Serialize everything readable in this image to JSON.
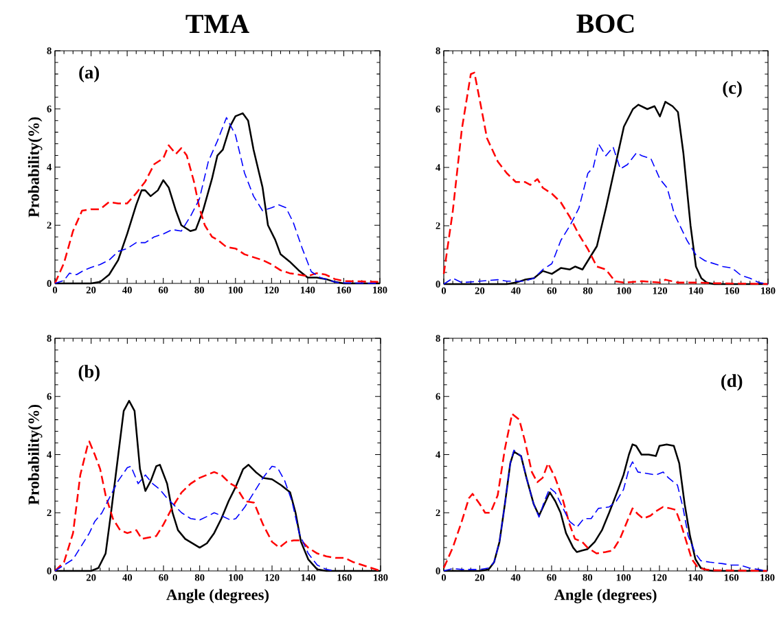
{
  "chart_data": [
    {
      "type": "line",
      "title": "TMA",
      "ylabel": "Probability(%)",
      "annotations": [
        "(a)"
      ],
      "xlim": [
        0,
        180
      ],
      "ylim": [
        0,
        8
      ],
      "xticks": [
        0,
        20,
        40,
        60,
        80,
        100,
        120,
        140,
        160,
        180
      ],
      "yticks": [
        0,
        2,
        4,
        6,
        8
      ],
      "series": [
        {
          "color": "#000000",
          "line_style": "solid",
          "x": [
            0,
            20,
            25,
            30,
            35,
            40,
            45,
            48,
            50,
            53,
            57,
            60,
            63,
            67,
            70,
            75,
            78,
            82,
            87,
            90,
            93,
            97,
            100,
            104,
            107,
            110,
            115,
            118,
            122,
            125,
            130,
            135,
            140,
            145,
            150,
            155,
            160,
            180
          ],
          "values": [
            0,
            0,
            0.05,
            0.3,
            0.8,
            1.7,
            2.7,
            3.2,
            3.2,
            3.0,
            3.2,
            3.55,
            3.3,
            2.5,
            2.0,
            1.8,
            1.85,
            2.5,
            3.6,
            4.4,
            4.6,
            5.4,
            5.75,
            5.85,
            5.6,
            4.6,
            3.3,
            2.0,
            1.5,
            1.0,
            0.75,
            0.45,
            0.2,
            0.2,
            0.15,
            0.05,
            0,
            0
          ]
        },
        {
          "color": "#ff0000",
          "line_style": "dashed",
          "x": [
            0,
            5,
            10,
            15,
            20,
            25,
            30,
            35,
            40,
            45,
            50,
            55,
            60,
            63,
            67,
            70,
            73,
            77,
            80,
            83,
            87,
            90,
            95,
            100,
            105,
            110,
            115,
            120,
            125,
            130,
            135,
            140,
            145,
            150,
            155,
            160,
            180
          ],
          "values": [
            0,
            0.7,
            1.8,
            2.5,
            2.55,
            2.55,
            2.8,
            2.75,
            2.75,
            3.1,
            3.5,
            4.1,
            4.3,
            4.75,
            4.45,
            4.65,
            4.4,
            3.5,
            2.6,
            2.0,
            1.6,
            1.5,
            1.25,
            1.2,
            1.0,
            0.9,
            0.8,
            0.65,
            0.45,
            0.35,
            0.3,
            0.25,
            0.35,
            0.3,
            0.15,
            0.08,
            0.05
          ]
        },
        {
          "color": "#0000ff",
          "line_style": "dashed",
          "x": [
            0,
            5,
            8,
            12,
            16,
            20,
            25,
            30,
            35,
            40,
            45,
            50,
            55,
            60,
            65,
            70,
            75,
            80,
            85,
            90,
            95,
            100,
            105,
            110,
            115,
            120,
            124,
            128,
            132,
            137,
            142,
            147,
            152,
            157,
            180
          ],
          "values": [
            0,
            0.1,
            0.35,
            0.3,
            0.45,
            0.55,
            0.65,
            0.8,
            1.1,
            1.2,
            1.4,
            1.4,
            1.6,
            1.7,
            1.85,
            1.8,
            2.3,
            2.9,
            4.2,
            4.9,
            5.7,
            5.1,
            3.8,
            3.0,
            2.5,
            2.6,
            2.7,
            2.6,
            2.1,
            1.2,
            0.4,
            0.2,
            0.1,
            0.02,
            0
          ]
        }
      ]
    },
    {
      "type": "line",
      "title": "BOC",
      "annotations": [
        "(c)"
      ],
      "xlim": [
        0,
        180
      ],
      "ylim": [
        0,
        8
      ],
      "xticks": [
        0,
        20,
        40,
        60,
        80,
        100,
        120,
        140,
        160,
        180
      ],
      "yticks": [
        0,
        2,
        4,
        6,
        8
      ],
      "series": [
        {
          "color": "#000000",
          "line_style": "solid",
          "x": [
            0,
            35,
            40,
            45,
            50,
            55,
            60,
            65,
            70,
            73,
            77,
            80,
            85,
            90,
            95,
            100,
            105,
            108,
            113,
            117,
            120,
            123,
            127,
            130,
            133,
            137,
            140,
            143,
            146,
            150,
            180
          ],
          "values": [
            0,
            0,
            0.05,
            0.15,
            0.2,
            0.45,
            0.35,
            0.55,
            0.5,
            0.6,
            0.5,
            0.8,
            1.3,
            2.6,
            4.0,
            5.4,
            6.0,
            6.15,
            6.0,
            6.1,
            5.75,
            6.25,
            6.1,
            5.9,
            4.5,
            2.0,
            0.6,
            0.2,
            0.05,
            0,
            0
          ]
        },
        {
          "color": "#ff0000",
          "line_style": "dashed",
          "x": [
            0,
            5,
            10,
            15,
            17,
            20,
            24,
            30,
            35,
            40,
            45,
            48,
            52,
            55,
            60,
            65,
            70,
            75,
            80,
            85,
            90,
            95,
            100,
            110,
            120,
            123,
            130,
            140,
            150,
            180
          ],
          "values": [
            0.35,
            2.5,
            5.3,
            7.2,
            7.25,
            6.3,
            5.0,
            4.2,
            3.8,
            3.5,
            3.5,
            3.4,
            3.6,
            3.3,
            3.1,
            2.8,
            2.3,
            1.7,
            1.2,
            0.6,
            0.5,
            0.1,
            0.05,
            0.1,
            0.05,
            0.15,
            0.05,
            0.05,
            0.03,
            0
          ]
        },
        {
          "color": "#0000ff",
          "line_style": "dashed",
          "x": [
            0,
            5,
            10,
            20,
            30,
            35,
            40,
            45,
            50,
            55,
            60,
            65,
            70,
            75,
            80,
            83,
            86,
            90,
            94,
            98,
            102,
            107,
            110,
            115,
            120,
            124,
            128,
            135,
            140,
            145,
            150,
            155,
            160,
            165,
            170,
            175,
            180
          ],
          "values": [
            0,
            0.2,
            0.05,
            0.1,
            0.15,
            0.1,
            0.1,
            0.1,
            0.2,
            0.5,
            0.7,
            1.5,
            2.0,
            2.6,
            3.8,
            4.0,
            4.8,
            4.4,
            4.7,
            3.95,
            4.1,
            4.5,
            4.4,
            4.3,
            3.6,
            3.3,
            2.4,
            1.5,
            1.0,
            0.8,
            0.7,
            0.6,
            0.55,
            0.3,
            0.2,
            0.05,
            0
          ]
        }
      ]
    },
    {
      "type": "line",
      "xlabel": "Angle (degrees)",
      "ylabel": "Probability(%)",
      "annotations": [
        "(b)"
      ],
      "xlim": [
        0,
        180
      ],
      "ylim": [
        0,
        8
      ],
      "xticks": [
        0,
        20,
        40,
        60,
        80,
        100,
        120,
        140,
        160,
        180
      ],
      "yticks": [
        0,
        2,
        4,
        6,
        8
      ],
      "series": [
        {
          "color": "#000000",
          "line_style": "solid",
          "x": [
            0,
            20,
            24,
            28,
            31,
            35,
            38,
            41,
            44,
            47,
            50,
            53,
            56,
            58,
            62,
            65,
            68,
            72,
            76,
            80,
            84,
            88,
            92,
            96,
            100,
            104,
            107,
            111,
            115,
            120,
            125,
            130,
            133,
            136,
            140,
            145,
            150,
            180
          ],
          "values": [
            0,
            0,
            0.1,
            0.6,
            2.0,
            4.0,
            5.5,
            5.85,
            5.5,
            3.5,
            2.75,
            3.1,
            3.6,
            3.65,
            3.0,
            2.0,
            1.4,
            1.1,
            0.95,
            0.8,
            0.95,
            1.3,
            1.8,
            2.4,
            2.9,
            3.5,
            3.65,
            3.4,
            3.2,
            3.15,
            2.95,
            2.7,
            2.0,
            1.0,
            0.4,
            0.05,
            0,
            0
          ]
        },
        {
          "color": "#ff0000",
          "line_style": "dashed",
          "x": [
            0,
            5,
            10,
            14,
            18,
            19,
            22,
            25,
            28,
            32,
            36,
            40,
            45,
            48,
            52,
            56,
            60,
            65,
            70,
            75,
            80,
            88,
            92,
            97,
            100,
            105,
            110,
            115,
            120,
            124,
            128,
            132,
            136,
            140,
            145,
            150,
            155,
            160,
            165,
            170,
            175,
            180
          ],
          "values": [
            0,
            0.3,
            1.3,
            3.3,
            4.3,
            4.45,
            4.0,
            3.5,
            2.6,
            1.8,
            1.4,
            1.3,
            1.4,
            1.1,
            1.15,
            1.2,
            1.6,
            2.2,
            2.7,
            3.0,
            3.2,
            3.4,
            3.3,
            3.0,
            2.9,
            2.4,
            2.35,
            1.6,
            1.0,
            0.8,
            1.0,
            1.05,
            1.05,
            0.8,
            0.6,
            0.5,
            0.45,
            0.45,
            0.3,
            0.2,
            0.1,
            0
          ]
        },
        {
          "color": "#0000ff",
          "line_style": "dashed",
          "x": [
            0,
            5,
            10,
            15,
            19,
            22,
            26,
            30,
            35,
            40,
            42,
            46,
            50,
            54,
            58,
            62,
            66,
            70,
            75,
            80,
            85,
            88,
            92,
            97,
            100,
            105,
            110,
            115,
            120,
            123,
            127,
            131,
            135,
            140,
            145,
            150,
            155
          ],
          "values": [
            0,
            0.2,
            0.4,
            0.9,
            1.3,
            1.7,
            2.0,
            2.5,
            3.1,
            3.55,
            3.6,
            3.0,
            3.3,
            3.0,
            2.8,
            2.5,
            2.25,
            2.0,
            1.8,
            1.75,
            1.9,
            2.0,
            1.9,
            1.75,
            1.8,
            2.2,
            2.7,
            3.2,
            3.6,
            3.55,
            3.1,
            2.4,
            1.3,
            0.6,
            0.2,
            0.05,
            0
          ]
        }
      ]
    },
    {
      "type": "line",
      "xlabel": "Angle (degrees)",
      "annotations": [
        "(d)"
      ],
      "xlim": [
        0,
        180
      ],
      "ylim": [
        0,
        8
      ],
      "xticks": [
        0,
        20,
        40,
        60,
        80,
        100,
        120,
        140,
        160,
        180
      ],
      "yticks": [
        0,
        2,
        4,
        6,
        8
      ],
      "series": [
        {
          "color": "#000000",
          "line_style": "solid",
          "x": [
            0,
            20,
            25,
            28,
            31,
            34,
            37,
            39,
            43,
            46,
            50,
            53,
            56,
            59,
            62,
            65,
            68,
            72,
            74,
            77,
            80,
            84,
            88,
            92,
            97,
            100,
            103,
            105,
            107,
            110,
            114,
            118,
            120,
            124,
            128,
            131,
            134,
            137,
            140,
            143,
            147,
            150,
            180
          ],
          "values": [
            0,
            0,
            0.05,
            0.3,
            1.0,
            2.3,
            3.7,
            4.1,
            3.95,
            3.2,
            2.3,
            1.9,
            2.3,
            2.7,
            2.4,
            2.0,
            1.3,
            0.8,
            0.65,
            0.7,
            0.75,
            1.0,
            1.4,
            2.0,
            2.8,
            3.3,
            4.0,
            4.35,
            4.3,
            4.0,
            4.0,
            3.95,
            4.3,
            4.35,
            4.3,
            3.7,
            2.3,
            1.2,
            0.4,
            0.1,
            0.02,
            0,
            0
          ]
        },
        {
          "color": "#ff0000",
          "line_style": "dashed",
          "x": [
            0,
            5,
            10,
            14,
            16,
            20,
            23,
            26,
            30,
            34,
            38,
            42,
            45,
            49,
            52,
            55,
            58,
            62,
            66,
            70,
            73,
            77,
            80,
            85,
            90,
            94,
            98,
            102,
            105,
            108,
            111,
            115,
            118,
            122,
            126,
            129,
            132,
            135,
            138,
            141,
            145,
            150,
            180
          ],
          "values": [
            0.1,
            0.8,
            1.7,
            2.5,
            2.65,
            2.3,
            2.0,
            2.0,
            2.6,
            4.2,
            5.4,
            5.2,
            4.5,
            3.4,
            3.05,
            3.2,
            3.7,
            3.2,
            2.5,
            1.6,
            1.1,
            1.0,
            0.8,
            0.6,
            0.65,
            0.7,
            1.1,
            1.7,
            2.15,
            1.95,
            1.8,
            1.9,
            2.05,
            2.2,
            2.15,
            2.1,
            1.6,
            1.0,
            0.4,
            0.15,
            0.05,
            0.02,
            0
          ]
        },
        {
          "color": "#0000ff",
          "line_style": "dashed",
          "x": [
            0,
            5,
            10,
            15,
            20,
            25,
            28,
            31,
            34,
            37,
            39,
            43,
            46,
            50,
            53,
            56,
            59,
            62,
            66,
            70,
            74,
            78,
            82,
            86,
            92,
            96,
            100,
            103,
            105,
            108,
            113,
            118,
            122,
            125,
            130,
            133,
            136,
            140,
            143,
            148,
            155,
            160,
            165,
            170,
            175,
            180
          ],
          "values": [
            0,
            0.08,
            0.05,
            0.05,
            0.05,
            0.1,
            0.3,
            1.0,
            2.3,
            3.7,
            4.15,
            3.95,
            3.2,
            2.3,
            1.85,
            2.4,
            2.85,
            2.7,
            2.2,
            1.7,
            1.5,
            1.8,
            1.8,
            2.15,
            2.2,
            2.4,
            2.8,
            3.5,
            3.75,
            3.4,
            3.35,
            3.3,
            3.4,
            3.2,
            2.95,
            2.2,
            1.2,
            0.6,
            0.35,
            0.3,
            0.25,
            0.2,
            0.2,
            0.1,
            0.05,
            0
          ]
        }
      ]
    }
  ]
}
